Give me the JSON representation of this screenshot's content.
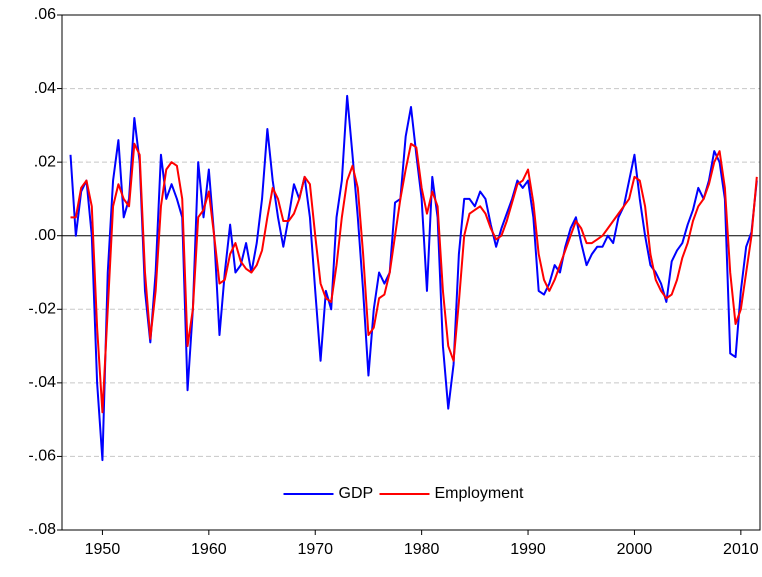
{
  "chart_data": {
    "type": "line",
    "x": [
      1947.0,
      1947.5,
      1948.0,
      1948.5,
      1949.0,
      1949.5,
      1950.0,
      1950.5,
      1951.0,
      1951.5,
      1952.0,
      1952.5,
      1953.0,
      1953.5,
      1954.0,
      1954.5,
      1955.0,
      1955.5,
      1956.0,
      1956.5,
      1957.0,
      1957.5,
      1958.0,
      1958.5,
      1959.0,
      1959.5,
      1960.0,
      1960.5,
      1961.0,
      1961.5,
      1962.0,
      1962.5,
      1963.0,
      1963.5,
      1964.0,
      1964.5,
      1965.0,
      1965.5,
      1966.0,
      1966.5,
      1967.0,
      1967.5,
      1968.0,
      1968.5,
      1969.0,
      1969.5,
      1970.0,
      1970.5,
      1971.0,
      1971.5,
      1972.0,
      1972.5,
      1973.0,
      1973.5,
      1974.0,
      1974.5,
      1975.0,
      1975.5,
      1976.0,
      1976.5,
      1977.0,
      1977.5,
      1978.0,
      1978.5,
      1979.0,
      1979.5,
      1980.0,
      1980.5,
      1981.0,
      1981.5,
      1982.0,
      1982.5,
      1983.0,
      1983.5,
      1984.0,
      1984.5,
      1985.0,
      1985.5,
      1986.0,
      1986.5,
      1987.0,
      1987.5,
      1988.0,
      1988.5,
      1989.0,
      1989.5,
      1990.0,
      1990.5,
      1991.0,
      1991.5,
      1992.0,
      1992.5,
      1993.0,
      1993.5,
      1994.0,
      1994.5,
      1995.0,
      1995.5,
      1996.0,
      1996.5,
      1997.0,
      1997.5,
      1998.0,
      1998.5,
      1999.0,
      1999.5,
      2000.0,
      2000.5,
      2001.0,
      2001.5,
      2002.0,
      2002.5,
      2003.0,
      2003.5,
      2004.0,
      2004.5,
      2005.0,
      2005.5,
      2006.0,
      2006.5,
      2007.0,
      2007.5,
      2008.0,
      2008.5,
      2009.0,
      2009.5,
      2010.0,
      2010.5,
      2011.0,
      2011.5
    ],
    "series": [
      {
        "name": "GDP",
        "color": "#0000ff",
        "values": [
          0.022,
          0.0,
          0.012,
          0.015,
          0.0,
          -0.04,
          -0.061,
          -0.01,
          0.015,
          0.026,
          0.005,
          0.01,
          0.032,
          0.02,
          -0.015,
          -0.029,
          -0.01,
          0.022,
          0.01,
          0.014,
          0.01,
          0.005,
          -0.042,
          -0.02,
          0.02,
          0.005,
          0.018,
          0.0,
          -0.027,
          -0.01,
          0.003,
          -0.01,
          -0.008,
          -0.002,
          -0.01,
          -0.002,
          0.01,
          0.029,
          0.015,
          0.005,
          -0.003,
          0.005,
          0.014,
          0.01,
          0.016,
          0.005,
          -0.015,
          -0.034,
          -0.015,
          -0.02,
          0.005,
          0.015,
          0.038,
          0.022,
          0.005,
          -0.015,
          -0.038,
          -0.02,
          -0.01,
          -0.013,
          -0.01,
          0.009,
          0.01,
          0.027,
          0.035,
          0.022,
          0.01,
          -0.015,
          0.016,
          0.005,
          -0.03,
          -0.047,
          -0.035,
          -0.005,
          0.01,
          0.01,
          0.008,
          0.012,
          0.01,
          0.003,
          -0.003,
          0.002,
          0.006,
          0.01,
          0.015,
          0.013,
          0.015,
          0.005,
          -0.015,
          -0.016,
          -0.013,
          -0.008,
          -0.01,
          -0.003,
          0.002,
          0.005,
          -0.002,
          -0.008,
          -0.005,
          -0.003,
          -0.003,
          0.0,
          -0.002,
          0.005,
          0.008,
          0.015,
          0.022,
          0.01,
          0.0,
          -0.008,
          -0.01,
          -0.013,
          -0.018,
          -0.007,
          -0.004,
          -0.002,
          0.003,
          0.007,
          0.013,
          0.01,
          0.015,
          0.023,
          0.02,
          0.01,
          -0.032,
          -0.033,
          -0.015,
          -0.003,
          0.001,
          0.015
        ]
      },
      {
        "name": "Employment",
        "color": "#ff0000",
        "values": [
          0.005,
          0.005,
          0.013,
          0.015,
          0.008,
          -0.025,
          -0.048,
          -0.02,
          0.008,
          0.014,
          0.01,
          0.008,
          0.025,
          0.022,
          -0.01,
          -0.028,
          -0.015,
          0.008,
          0.018,
          0.02,
          0.019,
          0.01,
          -0.03,
          -0.02,
          0.005,
          0.007,
          0.012,
          0.0,
          -0.013,
          -0.012,
          -0.005,
          -0.002,
          -0.007,
          -0.009,
          -0.01,
          -0.008,
          -0.004,
          0.005,
          0.013,
          0.01,
          0.004,
          0.004,
          0.006,
          0.01,
          0.016,
          0.014,
          0.0,
          -0.013,
          -0.017,
          -0.018,
          -0.008,
          0.005,
          0.015,
          0.019,
          0.013,
          -0.005,
          -0.027,
          -0.025,
          -0.017,
          -0.016,
          -0.01,
          0.0,
          0.01,
          0.018,
          0.025,
          0.024,
          0.013,
          0.006,
          0.012,
          0.008,
          -0.015,
          -0.03,
          -0.034,
          -0.018,
          0.0,
          0.006,
          0.007,
          0.008,
          0.006,
          0.002,
          -0.001,
          0.0,
          0.004,
          0.009,
          0.014,
          0.015,
          0.018,
          0.009,
          -0.005,
          -0.012,
          -0.015,
          -0.012,
          -0.008,
          -0.004,
          0.0,
          0.004,
          0.002,
          -0.002,
          -0.002,
          -0.001,
          0.0,
          0.002,
          0.004,
          0.006,
          0.008,
          0.01,
          0.016,
          0.015,
          0.008,
          -0.005,
          -0.012,
          -0.015,
          -0.017,
          -0.016,
          -0.012,
          -0.006,
          -0.002,
          0.004,
          0.008,
          0.01,
          0.014,
          0.02,
          0.023,
          0.013,
          -0.01,
          -0.024,
          -0.02,
          -0.01,
          0.0,
          0.016
        ]
      }
    ],
    "xlim": [
      1946.2,
      2011.8
    ],
    "xticks": [
      1950,
      1960,
      1970,
      1980,
      1990,
      2000,
      2010
    ],
    "ylim": [
      -0.08,
      0.06
    ],
    "yticks": [
      {
        "value": -0.08,
        "label": "-.08"
      },
      {
        "value": -0.06,
        "label": "-.06"
      },
      {
        "value": -0.04,
        "label": "-.04"
      },
      {
        "value": -0.02,
        "label": "-.02"
      },
      {
        "value": 0,
        "label": ".00"
      },
      {
        "value": 0.02,
        "label": ".02"
      },
      {
        "value": 0.04,
        "label": ".04"
      },
      {
        "value": 0.06,
        "label": ".06"
      }
    ],
    "grid": true,
    "zero_line": true,
    "legend": "lower center"
  }
}
